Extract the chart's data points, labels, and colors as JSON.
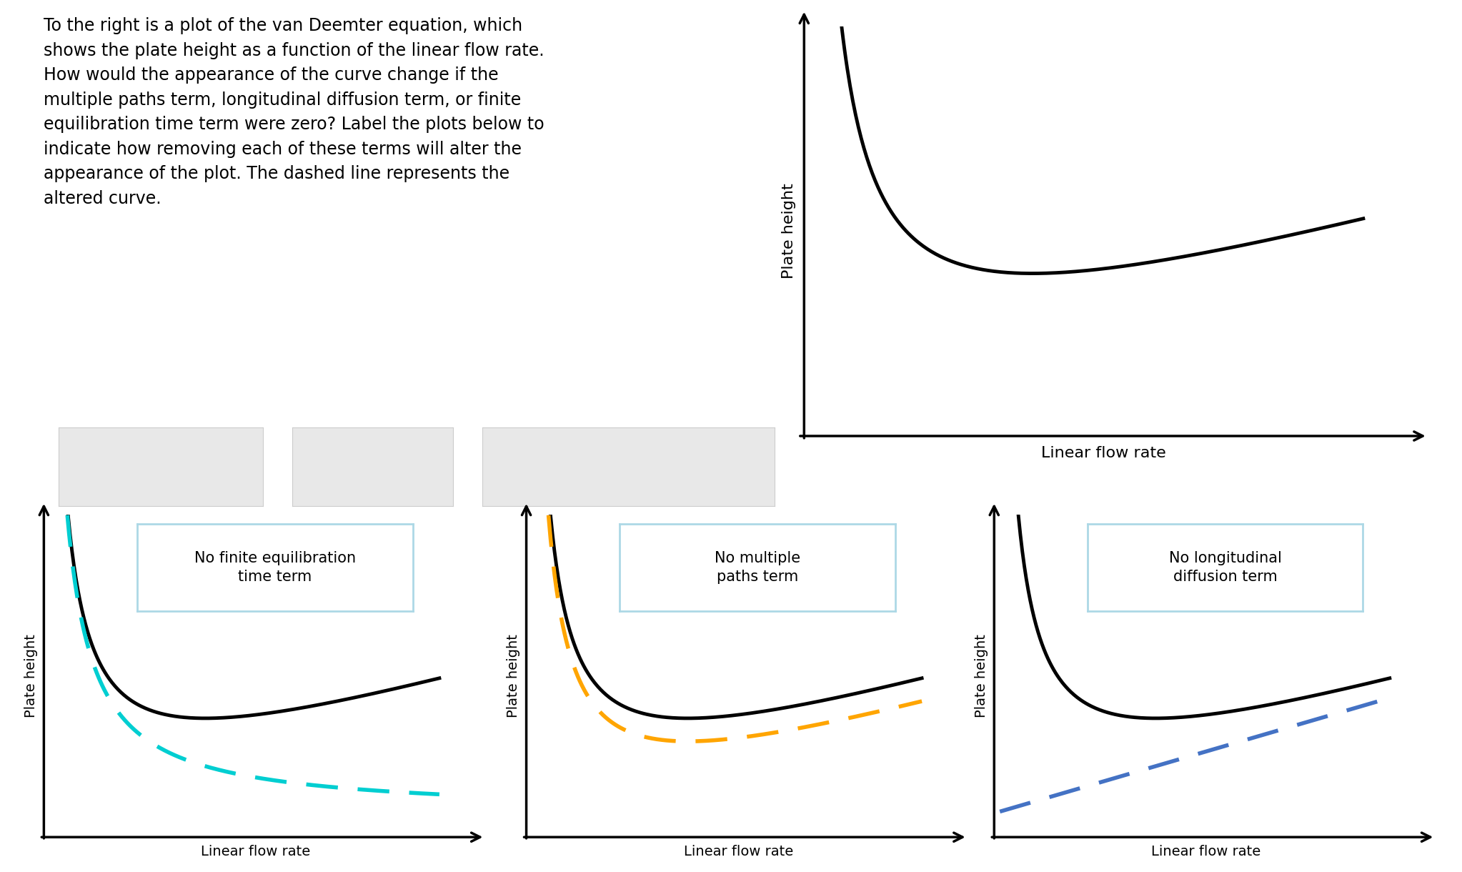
{
  "background_color": "#ffffff",
  "text_block": "To the right is a plot of the van Deemter equation, which\nshows the plate height as a function of the linear flow rate.\nHow would the appearance of the curve change if the\nmultiple paths term, longitudinal diffusion term, or finite\nequilibration time term were zero? Label the plots below to\nindicate how removing each of these terms will alter the\nappearance of the plot. The dashed line represents the\naltered curve.",
  "text_fontsize": 17,
  "ylabel": "Plate height",
  "xlabel": "Linear flow rate",
  "label_fontsize": 16,
  "main_curve_color": "#000000",
  "curve_linewidth": 3.5,
  "subplot_titles": [
    "No finite equilibration\ntime term",
    "No multiple\npaths term",
    "No longitudinal\ndiffusion term"
  ],
  "dashed_colors": [
    "#00CED1",
    "#FFA500",
    "#4472C4"
  ],
  "dashed_linewidth": 4.0,
  "gray_box_color": "#e8e8e8",
  "title_border_color": "#add8e6",
  "arrow_color": "#000000",
  "A": 0.5,
  "B": 6.0,
  "C": 0.18
}
